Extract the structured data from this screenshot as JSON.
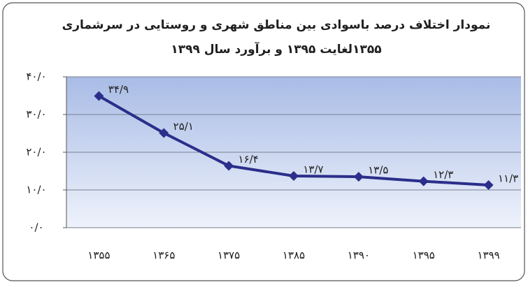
{
  "chart_data": {
    "type": "line",
    "title": "نمودار اختلاف درصد باسوادی بین مناطق شهری و روستایی در سرشماری",
    "subtitle": "۱۳۵۵لغایت ۱۳۹۵ و برآورد سال ۱۳۹۹",
    "categories": [
      "۱۳۵۵",
      "۱۳۶۵",
      "۱۳۷۵",
      "۱۳۸۵",
      "۱۳۹۰",
      "۱۳۹۵",
      "۱۳۹۹"
    ],
    "values": [
      34.9,
      25.1,
      16.4,
      13.7,
      13.5,
      12.3,
      11.3
    ],
    "value_labels": [
      "۳۴/۹",
      "۲۵/۱",
      "۱۶/۴",
      "۱۳/۷",
      "۱۳/۵",
      "۱۲/۳",
      "۱۱/۳"
    ],
    "color": "#2b2e8a",
    "ylim": [
      0,
      40
    ],
    "yticks": [
      {
        "value": 0,
        "label": "۰/۰"
      },
      {
        "value": 10,
        "label": "۱۰/۰"
      },
      {
        "value": 20,
        "label": "۲۰/۰"
      },
      {
        "value": 30,
        "label": "۳۰/۰"
      },
      {
        "value": 40,
        "label": "۴۰/۰"
      }
    ],
    "grid": true
  }
}
